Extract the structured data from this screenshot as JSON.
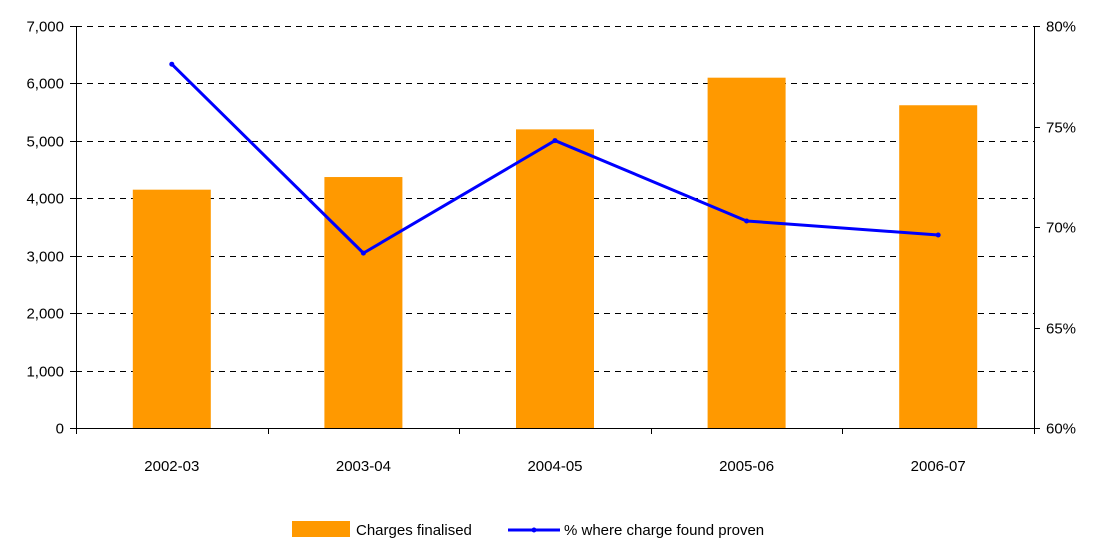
{
  "chart_data": {
    "type": "bar",
    "title": "",
    "xlabel": "",
    "ylabel": "",
    "categories": [
      "2002-03",
      "2003-04",
      "2004-05",
      "2005-06",
      "2006-07"
    ],
    "series": [
      {
        "name": "Charges finalised",
        "type": "bar",
        "axis": "left",
        "color": "#FF9900",
        "values": [
          4150,
          4370,
          5200,
          6100,
          5620
        ]
      },
      {
        "name": "% where charge found proven",
        "type": "line",
        "axis": "right",
        "color": "#0000FF",
        "values": [
          78.1,
          68.7,
          74.3,
          70.3,
          69.6
        ]
      }
    ],
    "ylim": [
      0,
      7000
    ],
    "y_ticks": [
      0,
      1000,
      2000,
      3000,
      4000,
      5000,
      6000,
      7000
    ],
    "y_tick_labels": [
      "0",
      "1,000",
      "2,000",
      "3,000",
      "4,000",
      "5,000",
      "6,000",
      "7,000"
    ],
    "y2lim": [
      60,
      80
    ],
    "y2_ticks": [
      60,
      65,
      70,
      75,
      80
    ],
    "y2_tick_labels": [
      "60%",
      "65%",
      "70%",
      "75%",
      "80%"
    ],
    "grid": "dashed-horizontal",
    "legend": "bottom-center"
  }
}
